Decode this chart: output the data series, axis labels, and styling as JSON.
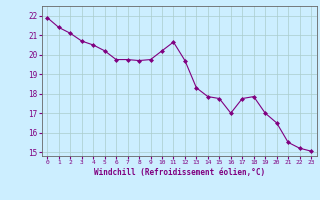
{
  "x": [
    0,
    1,
    2,
    3,
    4,
    5,
    6,
    7,
    8,
    9,
    10,
    11,
    12,
    13,
    14,
    15,
    16,
    17,
    18,
    19,
    20,
    21,
    22,
    23
  ],
  "y": [
    21.9,
    21.4,
    21.1,
    20.7,
    20.5,
    20.2,
    19.75,
    19.75,
    19.7,
    19.75,
    20.2,
    20.65,
    19.7,
    18.3,
    17.85,
    17.75,
    17.0,
    17.75,
    17.85,
    17.0,
    16.5,
    15.5,
    15.2,
    15.05
  ],
  "line_color": "#800080",
  "marker_color": "#800080",
  "bg_color": "#cceeff",
  "grid_color": "#aacccc",
  "xlabel": "Windchill (Refroidissement éolien,°C)",
  "xlabel_color": "#800080",
  "tick_color": "#800080",
  "ylim": [
    14.8,
    22.5
  ],
  "xlim": [
    -0.5,
    23.5
  ],
  "yticks": [
    15,
    16,
    17,
    18,
    19,
    20,
    21,
    22
  ],
  "xticks": [
    0,
    1,
    2,
    3,
    4,
    5,
    6,
    7,
    8,
    9,
    10,
    11,
    12,
    13,
    14,
    15,
    16,
    17,
    18,
    19,
    20,
    21,
    22,
    23
  ]
}
